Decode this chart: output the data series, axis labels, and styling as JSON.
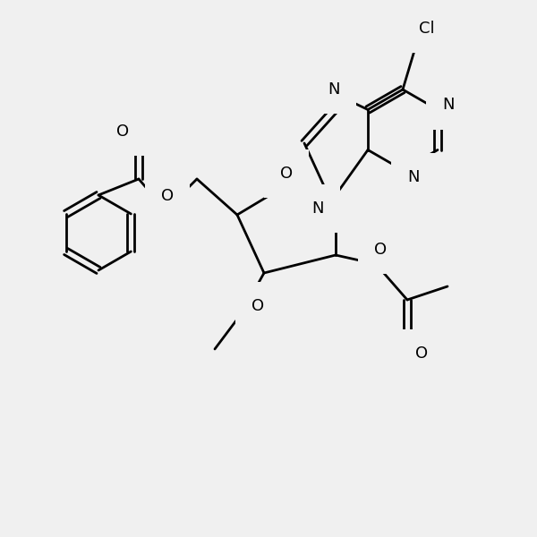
{
  "bg_color": "#f0f0f0",
  "line_color": "#000000",
  "lw": 2.0,
  "fig_size": [
    6.0,
    6.0
  ],
  "dpi": 100,
  "xlim": [
    0,
    600
  ],
  "ylim": [
    0,
    600
  ]
}
